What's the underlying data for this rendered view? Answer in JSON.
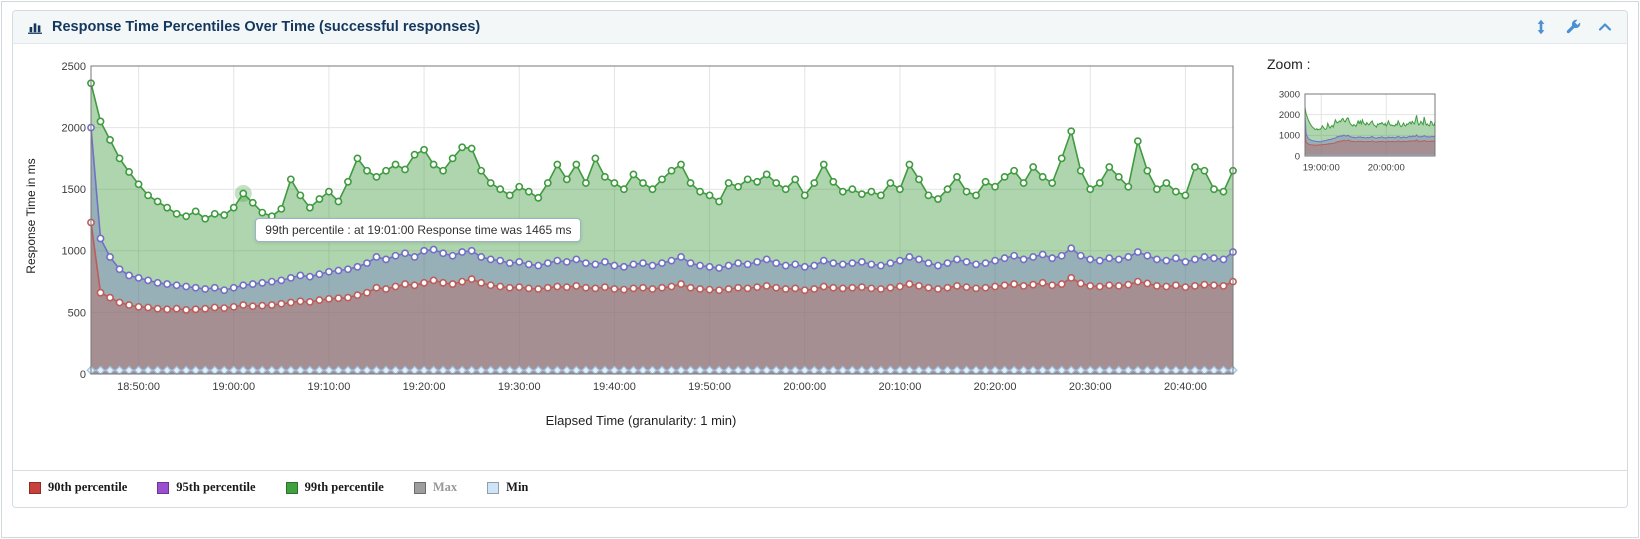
{
  "panel": {
    "title": "Response Time Percentiles Over Time (successful responses)"
  },
  "colors": {
    "accent_blue": "#4a90d2",
    "title_navy": "#14375e"
  },
  "header_icons": [
    "bar-chart-icon",
    "resize-vertical-icon",
    "wrench-icon",
    "collapse-icon"
  ],
  "zoom": {
    "label": "Zoom :"
  },
  "tooltip": {
    "text": "99th percentile : at 19:01:00 Response time was 1465 ms"
  },
  "chart_data": {
    "type": "area",
    "title": "Response Time Percentiles Over Time (successful responses)",
    "xlabel": "Elapsed Time (granularity: 1 min)",
    "ylabel": "Response Time in ms",
    "ylim": [
      0,
      2500
    ],
    "y_ticks": [
      0,
      500,
      1000,
      1500,
      2000,
      2500
    ],
    "x_start": "18:45:00",
    "x_step_minutes": 1,
    "x_count": 121,
    "grid": true,
    "legend_position": "bottom",
    "x_ticks": [
      {
        "index": 5,
        "label": "18:50:00"
      },
      {
        "index": 15,
        "label": "19:00:00"
      },
      {
        "index": 25,
        "label": "19:10:00"
      },
      {
        "index": 35,
        "label": "19:20:00"
      },
      {
        "index": 45,
        "label": "19:30:00"
      },
      {
        "index": 55,
        "label": "19:40:00"
      },
      {
        "index": 65,
        "label": "19:50:00"
      },
      {
        "index": 75,
        "label": "20:00:00"
      },
      {
        "index": 85,
        "label": "20:10:00"
      },
      {
        "index": 95,
        "label": "20:20:00"
      },
      {
        "index": 105,
        "label": "20:30:00"
      },
      {
        "index": 115,
        "label": "20:40:00"
      }
    ],
    "highlight": {
      "series": "99th percentile",
      "index": 16,
      "time": "19:01:00",
      "value": 1465
    },
    "series": [
      {
        "name": "90th percentile",
        "color": "#bd5d5a",
        "legend_color": "#c9413d",
        "visible": true,
        "fill_opacity": 0.38,
        "marker": "circle",
        "values": [
          1230,
          660,
          620,
          580,
          560,
          545,
          540,
          530,
          525,
          530,
          520,
          525,
          530,
          540,
          535,
          545,
          560,
          550,
          555,
          560,
          570,
          580,
          590,
          585,
          600,
          610,
          615,
          620,
          640,
          660,
          700,
          690,
          710,
          730,
          720,
          740,
          760,
          740,
          730,
          750,
          770,
          740,
          720,
          710,
          700,
          705,
          695,
          690,
          700,
          710,
          705,
          715,
          700,
          695,
          705,
          690,
          685,
          695,
          700,
          690,
          700,
          710,
          730,
          700,
          690,
          685,
          680,
          690,
          700,
          695,
          705,
          715,
          700,
          690,
          695,
          680,
          690,
          710,
          700,
          695,
          700,
          705,
          695,
          690,
          700,
          710,
          730,
          715,
          700,
          690,
          700,
          715,
          705,
          695,
          700,
          710,
          720,
          730,
          715,
          725,
          740,
          720,
          730,
          780,
          735,
          715,
          710,
          720,
          715,
          725,
          750,
          735,
          715,
          710,
          720,
          705,
          715,
          725,
          720,
          715,
          750
        ]
      },
      {
        "name": "95th percentile",
        "color": "#7270c6",
        "legend_color": "#9a4fcf",
        "visible": true,
        "fill_opacity": 0.38,
        "marker": "circle",
        "values": [
          2000,
          1100,
          950,
          850,
          800,
          780,
          760,
          740,
          730,
          720,
          710,
          700,
          690,
          700,
          680,
          700,
          720,
          730,
          740,
          750,
          760,
          780,
          800,
          790,
          810,
          830,
          840,
          850,
          870,
          900,
          950,
          930,
          960,
          980,
          950,
          1000,
          1010,
          980,
          960,
          990,
          1000,
          950,
          930,
          920,
          900,
          910,
          890,
          880,
          900,
          920,
          910,
          930,
          900,
          890,
          910,
          880,
          870,
          890,
          900,
          880,
          900,
          920,
          950,
          900,
          880,
          870,
          860,
          880,
          900,
          890,
          910,
          930,
          900,
          880,
          890,
          870,
          880,
          920,
          900,
          890,
          900,
          910,
          890,
          880,
          900,
          920,
          950,
          930,
          900,
          880,
          900,
          930,
          910,
          890,
          900,
          920,
          940,
          960,
          930,
          950,
          970,
          940,
          960,
          1020,
          960,
          930,
          920,
          940,
          930,
          950,
          990,
          960,
          930,
          920,
          940,
          910,
          930,
          950,
          940,
          930,
          990
        ]
      },
      {
        "name": "99th percentile",
        "color": "#3f9b3f",
        "legend_color": "#3fa13f",
        "visible": true,
        "fill_opacity": 0.42,
        "marker": "circle",
        "values": [
          2360,
          2050,
          1900,
          1750,
          1640,
          1540,
          1450,
          1400,
          1350,
          1300,
          1280,
          1320,
          1260,
          1300,
          1290,
          1350,
          1465,
          1390,
          1310,
          1280,
          1340,
          1580,
          1450,
          1350,
          1420,
          1480,
          1400,
          1560,
          1750,
          1650,
          1600,
          1650,
          1700,
          1660,
          1780,
          1820,
          1700,
          1650,
          1750,
          1840,
          1830,
          1650,
          1550,
          1500,
          1450,
          1520,
          1480,
          1430,
          1550,
          1700,
          1580,
          1700,
          1550,
          1750,
          1600,
          1550,
          1500,
          1620,
          1550,
          1500,
          1580,
          1650,
          1700,
          1550,
          1480,
          1450,
          1400,
          1550,
          1520,
          1580,
          1560,
          1620,
          1550,
          1500,
          1580,
          1450,
          1550,
          1700,
          1560,
          1480,
          1500,
          1460,
          1480,
          1450,
          1550,
          1500,
          1700,
          1580,
          1450,
          1420,
          1500,
          1600,
          1480,
          1450,
          1560,
          1520,
          1600,
          1650,
          1550,
          1680,
          1600,
          1550,
          1750,
          1970,
          1650,
          1500,
          1550,
          1680,
          1600,
          1520,
          1890,
          1650,
          1500,
          1550,
          1480,
          1450,
          1680,
          1650,
          1500,
          1480,
          1650
        ]
      },
      {
        "name": "Max",
        "color": "#9d9d9d",
        "legend_color": "#9d9d9d",
        "visible": false,
        "fill_opacity": 0.3,
        "marker": "circle",
        "values": []
      },
      {
        "name": "Min",
        "color": "#9fc3e4",
        "legend_color": "#cfe4f6",
        "visible": true,
        "fill_opacity": 0.3,
        "marker": "diamond",
        "constant": 30,
        "values": []
      }
    ],
    "zoom_chart": {
      "ylim": [
        0,
        3000
      ],
      "y_ticks": [
        0,
        1000,
        2000,
        3000
      ],
      "x_ticks": [
        {
          "index": 15,
          "label": "19:00:00"
        },
        {
          "index": 75,
          "label": "20:00:00"
        }
      ]
    }
  }
}
